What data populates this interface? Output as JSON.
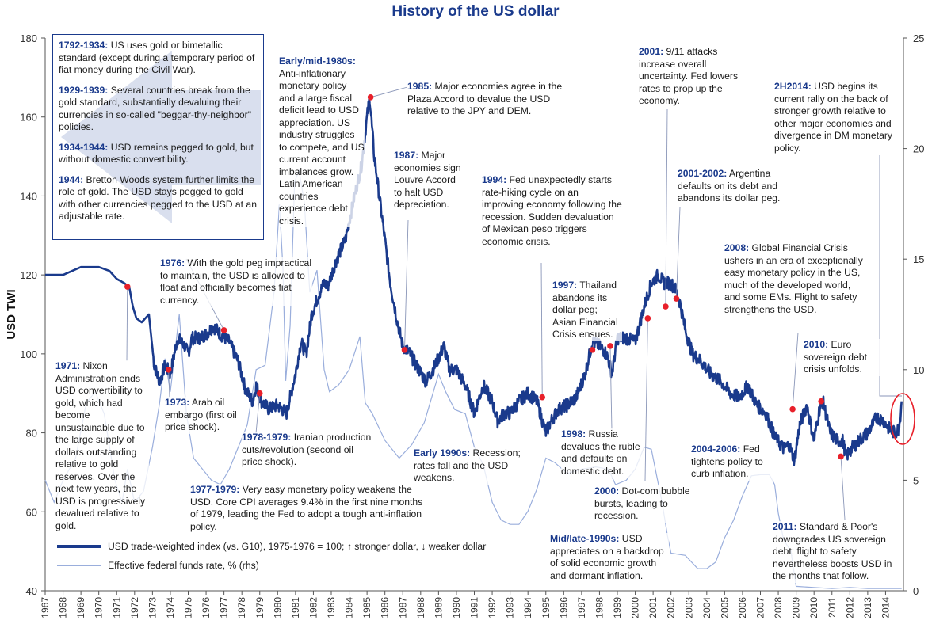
{
  "chart_data": {
    "type": "line",
    "title": "History of the US dollar",
    "ylabel": "USD TWI",
    "ylim": [
      40,
      180
    ],
    "y2lim": [
      0,
      25
    ],
    "xlim": [
      1967,
      2015
    ],
    "x_ticks": [
      "1967",
      "1968",
      "1969",
      "1970",
      "1971",
      "1972",
      "1973",
      "1974",
      "1975",
      "1976",
      "1977",
      "1978",
      "1979",
      "1980",
      "1981",
      "1982",
      "1983",
      "1984",
      "1985",
      "1986",
      "1987",
      "1988",
      "1989",
      "1990",
      "1991",
      "1992",
      "1993",
      "1994",
      "1995",
      "1996",
      "1997",
      "1998",
      "1999",
      "2000",
      "2001",
      "2002",
      "2003",
      "2004",
      "2005",
      "2006",
      "2007",
      "2008",
      "2009",
      "2010",
      "2011",
      "2012",
      "2013",
      "2014"
    ],
    "y_ticks": [
      "40",
      "60",
      "80",
      "100",
      "120",
      "140",
      "160",
      "180"
    ],
    "y2_ticks": [
      "0",
      "5",
      "10",
      "15",
      "20",
      "25"
    ],
    "series": [
      {
        "name": "USD trade-weighted index (vs. G10), 1975-1976 = 100; ↑ stronger dollar, ↓ weaker dollar",
        "color": "#1a3a8c",
        "axis": "left",
        "x": [
          1967.0,
          1968.0,
          1969.0,
          1969.8,
          1970.0,
          1970.6,
          1971.0,
          1971.4,
          1971.7,
          1971.9,
          1972.1,
          1972.4,
          1972.8,
          1973.1,
          1973.4,
          1973.7,
          1974.0,
          1974.4,
          1974.8,
          1975.0,
          1975.2,
          1975.6,
          1976.0,
          1976.4,
          1976.8,
          1977.3,
          1977.8,
          1978.2,
          1978.6,
          1978.8,
          1979.1,
          1979.5,
          1980.0,
          1980.5,
          1981.0,
          1981.3,
          1981.6,
          1981.9,
          1982.3,
          1982.6,
          1982.8,
          1983.3,
          1983.8,
          1984.3,
          1984.7,
          1985.0,
          1985.15,
          1985.4,
          1985.8,
          1986.3,
          1986.7,
          1987.0,
          1987.4,
          1987.9,
          1988.3,
          1988.8,
          1989.3,
          1989.6,
          1990.0,
          1990.5,
          1991.0,
          1991.5,
          1992.0,
          1992.3,
          1992.7,
          1993.0,
          1993.5,
          1994.0,
          1994.5,
          1995.0,
          1995.3,
          1995.7,
          1996.2,
          1996.7,
          1997.2,
          1997.6,
          1998.0,
          1998.4,
          1998.7,
          1999.0,
          1999.5,
          2000.0,
          2000.5,
          2000.9,
          2001.3,
          2001.6,
          2001.9,
          2002.2,
          2002.5,
          2002.8,
          2003.2,
          2003.7,
          2004.2,
          2004.8,
          2005.3,
          2005.8,
          2006.3,
          2006.8,
          2007.3,
          2007.8,
          2008.3,
          2008.6,
          2008.9,
          2009.2,
          2009.6,
          2010.0,
          2010.3,
          2010.5,
          2010.9,
          2011.3,
          2011.6,
          2011.8,
          2012.1,
          2012.5,
          2013.0,
          2013.5,
          2013.9,
          2014.2,
          2014.5,
          2014.75,
          2014.9
        ],
        "y": [
          120,
          120,
          122,
          122,
          122,
          121,
          119,
          118,
          117,
          112,
          109,
          108,
          110,
          97,
          93,
          97,
          95,
          104,
          102,
          100,
          104,
          104,
          105,
          107,
          105,
          103,
          98,
          91,
          88,
          92,
          88,
          86,
          87,
          85,
          95,
          103,
          100,
          110,
          115,
          118,
          117,
          124,
          129,
          140,
          148,
          160,
          165,
          150,
          136,
          118,
          108,
          102,
          100,
          96,
          93,
          97,
          102,
          96,
          96,
          92,
          85,
          92,
          88,
          83,
          85,
          85,
          88,
          90,
          88,
          80,
          83,
          86,
          87,
          89,
          95,
          103,
          102,
          100,
          95,
          104,
          104,
          103,
          112,
          118,
          120,
          118,
          118,
          117,
          113,
          106,
          100,
          98,
          95,
          93,
          90,
          89,
          92,
          87,
          85,
          79,
          76,
          77,
          73,
          82,
          87,
          78,
          86,
          88,
          80,
          78,
          78,
          74,
          76,
          78,
          80,
          84,
          83,
          81,
          80,
          81,
          88
        ],
        "annotated_points_x": [
          1971.6,
          1973.9,
          1977.0,
          1979.0,
          1985.2,
          1987.1,
          1994.8,
          1997.6,
          1998.6,
          2000.7,
          2001.7,
          2002.3,
          2008.8,
          2010.4,
          2011.5
        ],
        "annotated_points_y": [
          117,
          96,
          106,
          90,
          165,
          101,
          89,
          101,
          102,
          109,
          112,
          114,
          86,
          88,
          74
        ]
      },
      {
        "name": "Effective federal funds rate, % (rhs)",
        "color": "#9aaedc",
        "axis": "right",
        "x": [
          1967.0,
          1967.5,
          1968.0,
          1968.7,
          1969.3,
          1969.8,
          1970.3,
          1970.9,
          1971.3,
          1971.6,
          1972.0,
          1972.5,
          1973.0,
          1973.4,
          1973.7,
          1974.0,
          1974.5,
          1974.9,
          1975.3,
          1975.8,
          1976.3,
          1976.8,
          1977.3,
          1977.8,
          1978.3,
          1978.8,
          1979.3,
          1979.8,
          1980.1,
          1980.3,
          1980.45,
          1980.7,
          1980.95,
          1981.2,
          1981.5,
          1981.8,
          1982.2,
          1982.6,
          1982.9,
          1983.4,
          1984.0,
          1984.6,
          1984.9,
          1985.3,
          1986.0,
          1986.8,
          1987.5,
          1988.2,
          1989.0,
          1989.4,
          1989.9,
          1990.5,
          1991.0,
          1991.5,
          1992.0,
          1992.5,
          1993.0,
          1993.5,
          1994.0,
          1994.5,
          1995.0,
          1995.5,
          1996.2,
          1997.0,
          1997.8,
          1998.5,
          1998.9,
          1999.5,
          2000.0,
          2000.5,
          2000.9,
          2001.2,
          2001.5,
          2001.8,
          2002.0,
          2002.8,
          2003.5,
          2004.0,
          2004.5,
          2005.0,
          2005.5,
          2006.0,
          2006.5,
          2007.0,
          2007.5,
          2007.8,
          2008.0,
          2008.3,
          2008.7,
          2009.0,
          2010.0,
          2011.0,
          2012.0,
          2013.0,
          2014.0,
          2014.9
        ],
        "y": [
          5.0,
          4.0,
          5.0,
          6.0,
          8.5,
          9.0,
          8.0,
          5.0,
          4.0,
          5.5,
          4.0,
          4.5,
          6.5,
          8.5,
          10.5,
          9.0,
          12.5,
          8.0,
          6.0,
          5.5,
          5.0,
          4.8,
          5.5,
          6.5,
          7.5,
          10.0,
          10.2,
          13.5,
          17.5,
          14.5,
          9.5,
          12.0,
          18.5,
          19.0,
          17.5,
          13.5,
          14.5,
          10.0,
          9.0,
          9.3,
          10.0,
          11.5,
          8.5,
          8.0,
          6.8,
          6.0,
          6.6,
          7.6,
          9.8,
          9.0,
          8.2,
          8.0,
          6.5,
          5.7,
          4.0,
          3.2,
          3.0,
          3.0,
          3.6,
          4.6,
          6.0,
          5.8,
          5.3,
          5.5,
          5.6,
          5.5,
          4.8,
          5.0,
          5.5,
          6.5,
          6.4,
          5.2,
          4.0,
          2.5,
          1.7,
          1.6,
          1.0,
          1.0,
          1.3,
          2.4,
          3.2,
          4.3,
          5.2,
          5.25,
          5.25,
          4.8,
          3.5,
          2.3,
          1.8,
          0.2,
          0.15,
          0.1,
          0.15,
          0.1,
          0.1,
          0.1
        ]
      }
    ]
  },
  "legend": {
    "line1": "USD trade-weighted index (vs. G10), 1975-1976 = 100; ↑ stronger dollar, ↓ weaker dollar",
    "line2": "Effective federal funds rate, % (rhs)"
  },
  "history_box": [
    {
      "date": "1792-1934:",
      "text": " US uses gold or bimetallic standard (except during a temporary period of fiat money during the Civil War)."
    },
    {
      "date": "1929-1939:",
      "text": " Several countries break from the gold standard, substantially devaluing their currencies in so-called \"beggar-thy-neighbor\" policies."
    },
    {
      "date": "1934-1944:",
      "text": " USD remains pegged to gold, but without domestic convertibility."
    },
    {
      "date": "1944:",
      "text": " Bretton Woods system further limits the role of gold. The USD stays pegged to gold with other currencies pegged to the USD at an adjustable rate."
    }
  ],
  "annotations": {
    "a1971": {
      "date": "1971:",
      "text": " Nixon Administration ends USD convertibility to gold, which had become unsustainable due to the large supply of dollars outstanding relative to gold reserves. Over the next few years, the USD is progressively devalued relative to gold."
    },
    "a1973": {
      "date": "1973:",
      "text": " Arab oil embargo (first oil price shock)."
    },
    "a1976": {
      "date": "1976:",
      "text": " With the gold peg impractical to maintain, the USD is allowed to float and officially becomes fiat currency."
    },
    "a1977": {
      "date": "1977-1979:",
      "text": " Very easy monetary policy weakens the USD. Core CPI averages 9.4% in the first nine months of 1979, leading the Fed to adopt a tough anti-inflation policy."
    },
    "a1978": {
      "date": "1978-1979:",
      "text": " Iranian production cuts/revolution (second oil price shock)."
    },
    "a1980s": {
      "date": "Early/mid-1980s:",
      "text": " Anti-inflationary monetary policy and a large fiscal deficit lead to USD appreciation. US industry struggles to compete, and US current account imbalances grow. Latin American countries experience debt crisis."
    },
    "a1985": {
      "date": "1985:",
      "text": " Major economies agree in the Plaza Accord to devalue the USD relative to the JPY and DEM."
    },
    "a1987": {
      "date": "1987:",
      "text": " Major economies sign Louvre Accord to halt USD depreciation."
    },
    "a1990s": {
      "date": "Early 1990s:",
      "text": " Recession; rates fall and the USD weakens."
    },
    "a1994": {
      "date": "1994:",
      "text": " Fed unexpectedly starts rate-hiking cycle on an improving economy following the recession. Sudden devaluation of Mexican peso triggers economic crisis."
    },
    "a1997": {
      "date": "1997:",
      "text": " Thailand abandons its dollar peg; Asian Financial Crisis ensues."
    },
    "a1998": {
      "date": "1998:",
      "text": " Russia devalues the ruble and defaults on domestic debt."
    },
    "amid1990s": {
      "date": "Mid/late-1990s:",
      "text": " USD appreciates on a backdrop of solid economic growth and dormant inflation."
    },
    "a2000": {
      "date": "2000:",
      "text": " Dot-com bubble bursts, leading to recession."
    },
    "a2001": {
      "date": "2001:",
      "text": " 9/11 attacks increase overall uncertainty. Fed lowers rates to prop up the economy."
    },
    "a2001b": {
      "date": "2001-2002:",
      "text": " Argentina defaults on its debt and abandons its dollar peg."
    },
    "a2004": {
      "date": "2004-2006:",
      "text": " Fed tightens policy to curb inflation."
    },
    "a2008": {
      "date": "2008:",
      "text": " Global Financial Crisis ushers in an era of exceptionally easy monetary policy in the US, much of the developed world, and some EMs. Flight to safety strengthens the USD."
    },
    "a2010": {
      "date": "2010:",
      "text": " Euro sovereign debt crisis unfolds."
    },
    "a2011": {
      "date": "2011:",
      "text": " Standard & Poor's downgrades US sovereign debt; flight to safety nevertheless boosts USD in the months that follow."
    },
    "a2014": {
      "date": "2H2014:",
      "text": " USD begins its current rally on the back of stronger growth relative to other major economies and divergence in DM monetary policy."
    }
  },
  "colors": {
    "usd_line": "#1a3a8c",
    "ffr_line": "#9aaedc",
    "marker": "#e8202a",
    "arrow": "#d9dfee"
  }
}
